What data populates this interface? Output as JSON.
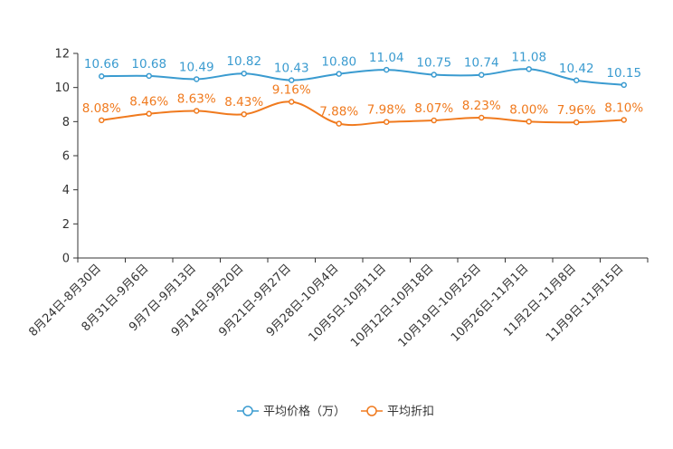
{
  "chart_data": {
    "type": "line",
    "title": "",
    "xlabel": "",
    "ylabel": "",
    "ylim": [
      0,
      12
    ],
    "yticks": [
      0,
      2,
      4,
      6,
      8,
      10,
      12
    ],
    "categories": [
      "8月24日-8月30日",
      "8月31日-9月6日",
      "9月7日-9月13日",
      "9月14日-9月20日",
      "9月21日-9月27日",
      "9月28日-10月4日",
      "10月5日-10月11日",
      "10月12日-10月18日",
      "10月19日-10月25日",
      "10月26日-11月1日",
      "11月2日-11月8日",
      "11月9日-11月15日"
    ],
    "series": [
      {
        "name": "平均价格（万）",
        "color": "#3a9bd0",
        "values": [
          10.66,
          10.68,
          10.49,
          10.82,
          10.43,
          10.8,
          11.04,
          10.75,
          10.74,
          11.08,
          10.42,
          10.15
        ],
        "labels": [
          "10.66",
          "10.68",
          "10.49",
          "10.82",
          "10.43",
          "10.80",
          "11.04",
          "10.75",
          "10.74",
          "11.08",
          "10.42",
          "10.15"
        ]
      },
      {
        "name": "平均折扣",
        "color": "#f07a1e",
        "values": [
          8.08,
          8.46,
          8.63,
          8.43,
          9.16,
          7.88,
          7.98,
          8.07,
          8.23,
          8.0,
          7.96,
          8.1
        ],
        "labels": [
          "8.08%",
          "8.46%",
          "8.63%",
          "8.43%",
          "9.16%",
          "7.88%",
          "7.98%",
          "8.07%",
          "8.23%",
          "8.00%",
          "7.96%",
          "8.10%"
        ]
      }
    ],
    "legend_position": "bottom-center"
  }
}
